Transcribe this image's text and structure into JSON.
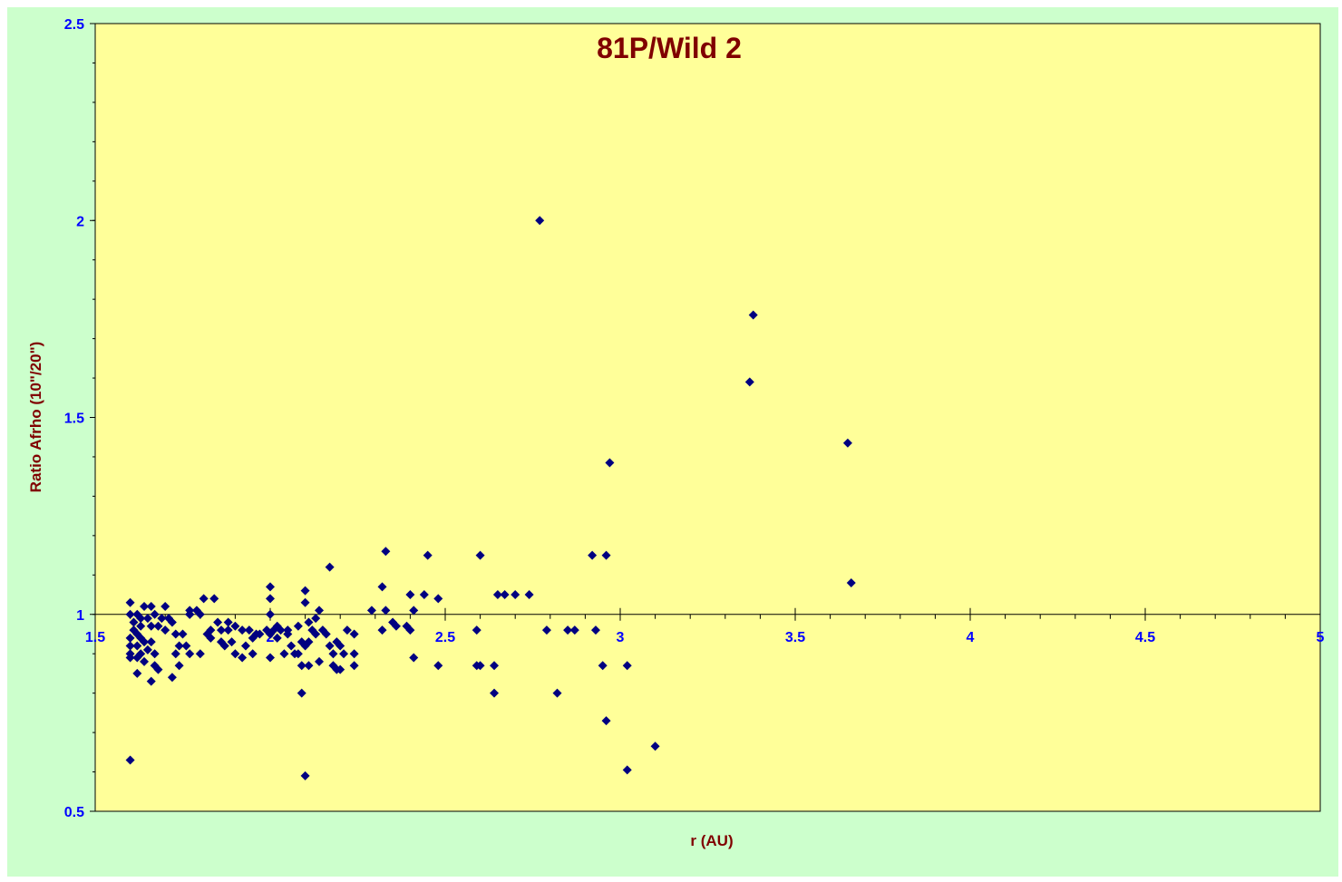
{
  "chart_data": {
    "type": "scatter",
    "title": "81P/Wild 2",
    "xlabel": "r (AU)",
    "ylabel": "Ratio Afrho (10\"/20\")",
    "xlim": [
      1.5,
      5
    ],
    "ylim": [
      0.5,
      2.5
    ],
    "x_ticks": [
      "1.5",
      "2",
      "2.5",
      "3",
      "3.5",
      "4",
      "4.5",
      "5"
    ],
    "x_tick_values": [
      1.5,
      2,
      2.5,
      3,
      3.5,
      4,
      4.5,
      5
    ],
    "y_ticks": [
      "0.5",
      "1",
      "1.5",
      "2",
      "2.5"
    ],
    "y_tick_values": [
      0.5,
      1,
      1.5,
      2,
      2.5
    ],
    "x_axis_crosses_at": 1,
    "grid": false,
    "legend": "none",
    "colors": {
      "outer_background": "#ccffcc",
      "plot_background": "#ffff99",
      "marker": "#000080",
      "title": "#800000",
      "tick_labels": "#0000ff"
    },
    "marker": "diamond",
    "series": [
      {
        "points": [
          [
            2.77,
            2.0
          ],
          [
            3.38,
            1.76
          ],
          [
            3.37,
            1.59
          ],
          [
            3.65,
            1.435
          ],
          [
            2.97,
            1.385
          ],
          [
            3.66,
            1.08
          ],
          [
            2.33,
            1.16
          ],
          [
            2.45,
            1.15
          ],
          [
            2.6,
            1.15
          ],
          [
            2.92,
            1.15
          ],
          [
            2.96,
            1.15
          ],
          [
            2.17,
            1.12
          ],
          [
            2.32,
            1.07
          ],
          [
            2.0,
            1.07
          ],
          [
            2.1,
            1.06
          ],
          [
            2.4,
            1.05
          ],
          [
            2.44,
            1.05
          ],
          [
            2.48,
            1.04
          ],
          [
            2.65,
            1.05
          ],
          [
            2.67,
            1.05
          ],
          [
            2.7,
            1.05
          ],
          [
            2.74,
            1.05
          ],
          [
            1.81,
            1.04
          ],
          [
            1.84,
            1.04
          ],
          [
            2.0,
            1.04
          ],
          [
            2.1,
            1.03
          ],
          [
            1.6,
            1.03
          ],
          [
            1.64,
            1.02
          ],
          [
            1.66,
            1.02
          ],
          [
            1.7,
            1.02
          ],
          [
            2.14,
            1.01
          ],
          [
            2.29,
            1.01
          ],
          [
            2.33,
            1.01
          ],
          [
            2.41,
            1.01
          ],
          [
            1.77,
            1.01
          ],
          [
            1.79,
            1.01
          ],
          [
            1.8,
            1.0
          ],
          [
            1.77,
            1.0
          ],
          [
            1.77,
            1.0
          ],
          [
            1.77,
            1.0
          ],
          [
            1.6,
            1.0
          ],
          [
            1.62,
            1.0
          ],
          [
            1.63,
            0.99
          ],
          [
            1.65,
            0.99
          ],
          [
            1.67,
            1.0
          ],
          [
            1.69,
            0.99
          ],
          [
            1.71,
            0.99
          ],
          [
            1.72,
            0.98
          ],
          [
            1.61,
            0.98
          ],
          [
            1.63,
            0.97
          ],
          [
            1.66,
            0.97
          ],
          [
            1.68,
            0.97
          ],
          [
            1.7,
            0.96
          ],
          [
            1.61,
            0.96
          ],
          [
            1.62,
            0.95
          ],
          [
            1.6,
            0.94
          ],
          [
            1.63,
            0.94
          ],
          [
            1.64,
            0.93
          ],
          [
            1.66,
            0.93
          ],
          [
            1.6,
            0.92
          ],
          [
            1.62,
            0.92
          ],
          [
            1.65,
            0.91
          ],
          [
            1.6,
            0.9
          ],
          [
            1.63,
            0.9
          ],
          [
            1.67,
            0.9
          ],
          [
            1.6,
            0.89
          ],
          [
            1.62,
            0.89
          ],
          [
            1.64,
            0.88
          ],
          [
            1.67,
            0.87
          ],
          [
            1.73,
            0.9
          ],
          [
            1.74,
            0.92
          ],
          [
            1.76,
            0.92
          ],
          [
            1.77,
            0.9
          ],
          [
            1.73,
            0.95
          ],
          [
            1.75,
            0.95
          ],
          [
            1.8,
            0.9
          ],
          [
            1.82,
            0.95
          ],
          [
            1.83,
            0.96
          ],
          [
            1.83,
            0.94
          ],
          [
            1.86,
            0.96
          ],
          [
            1.86,
            0.93
          ],
          [
            1.88,
            0.96
          ],
          [
            1.89,
            0.93
          ],
          [
            1.85,
            0.98
          ],
          [
            1.88,
            0.98
          ],
          [
            1.9,
            0.97
          ],
          [
            1.92,
            0.96
          ],
          [
            1.94,
            0.96
          ],
          [
            1.96,
            0.95
          ],
          [
            1.87,
            0.92
          ],
          [
            1.9,
            0.9
          ],
          [
            1.93,
            0.92
          ],
          [
            1.95,
            0.94
          ],
          [
            1.97,
            0.95
          ],
          [
            1.99,
            0.96
          ],
          [
            2.0,
            0.95
          ],
          [
            2.01,
            0.96
          ],
          [
            2.02,
            0.94
          ],
          [
            2.03,
            0.96
          ],
          [
            2.05,
            0.95
          ],
          [
            2.06,
            0.92
          ],
          [
            2.07,
            0.9
          ],
          [
            2.08,
            0.9
          ],
          [
            2.09,
            0.93
          ],
          [
            2.1,
            0.92
          ],
          [
            2.11,
            0.93
          ],
          [
            2.12,
            0.96
          ],
          [
            2.13,
            0.95
          ],
          [
            2.15,
            0.96
          ],
          [
            2.16,
            0.95
          ],
          [
            2.17,
            0.92
          ],
          [
            2.18,
            0.9
          ],
          [
            2.19,
            0.93
          ],
          [
            2.2,
            0.92
          ],
          [
            2.21,
            0.9
          ],
          [
            2.22,
            0.96
          ],
          [
            2.14,
            0.88
          ],
          [
            2.13,
            0.99
          ],
          [
            2.11,
            0.98
          ],
          [
            2.08,
            0.97
          ],
          [
            2.05,
            0.96
          ],
          [
            2.02,
            0.97
          ],
          [
            2.0,
            1.0
          ],
          [
            1.95,
            0.9
          ],
          [
            1.92,
            0.89
          ],
          [
            2.0,
            0.89
          ],
          [
            2.04,
            0.9
          ],
          [
            2.09,
            0.87
          ],
          [
            2.11,
            0.87
          ],
          [
            2.18,
            0.87
          ],
          [
            2.19,
            0.86
          ],
          [
            2.2,
            0.86
          ],
          [
            2.24,
            0.87
          ],
          [
            2.24,
            0.9
          ],
          [
            1.62,
            0.85
          ],
          [
            1.72,
            0.84
          ],
          [
            1.66,
            0.83
          ],
          [
            1.68,
            0.86
          ],
          [
            1.74,
            0.87
          ],
          [
            2.09,
            0.8
          ],
          [
            2.1,
            0.59
          ],
          [
            1.6,
            0.63
          ],
          [
            2.24,
            0.95
          ],
          [
            2.32,
            0.96
          ],
          [
            2.35,
            0.98
          ],
          [
            2.36,
            0.97
          ],
          [
            2.39,
            0.97
          ],
          [
            2.4,
            0.96
          ],
          [
            2.41,
            0.89
          ],
          [
            2.48,
            0.87
          ],
          [
            2.59,
            0.96
          ],
          [
            2.59,
            0.87
          ],
          [
            2.6,
            0.87
          ],
          [
            2.64,
            0.87
          ],
          [
            2.64,
            0.8
          ],
          [
            2.79,
            0.96
          ],
          [
            2.85,
            0.96
          ],
          [
            2.87,
            0.96
          ],
          [
            2.93,
            0.96
          ],
          [
            2.95,
            0.87
          ],
          [
            3.02,
            0.87
          ],
          [
            2.82,
            0.8
          ],
          [
            2.96,
            0.73
          ],
          [
            3.1,
            0.665
          ],
          [
            3.02,
            0.605
          ]
        ]
      }
    ]
  }
}
